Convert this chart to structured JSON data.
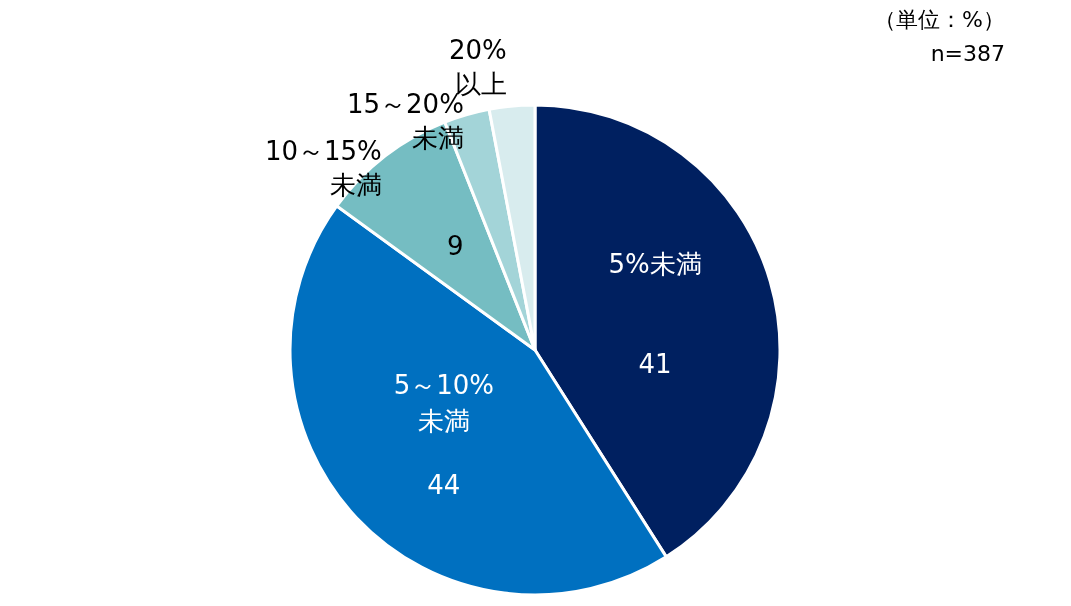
{
  "chart_data": {
    "type": "pie",
    "categories": [
      "5%未満",
      "5～10%\n未満",
      "10～15%\n未満",
      "15～20%\n未満",
      "20%\n以上"
    ],
    "values": [
      41,
      44,
      9,
      3,
      3
    ],
    "value_labels": [
      "41",
      "44",
      "9",
      null,
      null
    ],
    "colors": [
      "#002060",
      "#0070c0",
      "#75bdc2",
      "#a3d4d8",
      "#d8ecee"
    ],
    "annotations": [
      "（単位：%）",
      "n=387"
    ]
  }
}
